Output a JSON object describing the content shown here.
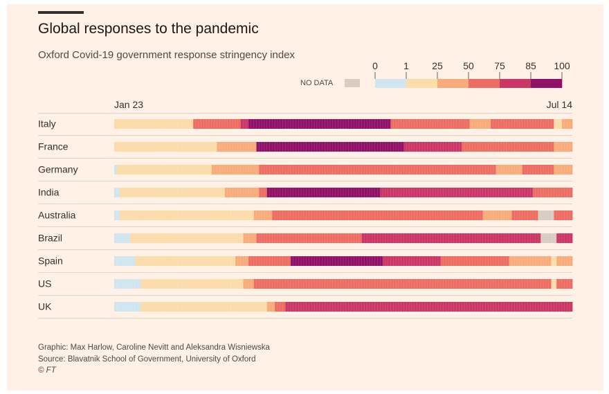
{
  "header": {
    "title": "Global responses to the pandemic",
    "subtitle": "Oxford Covid-19 government response stringency index"
  },
  "legend": {
    "no_data_label": "NO DATA",
    "no_data_color": "#d9ccc3",
    "ticks": [
      "0",
      "1",
      "25",
      "50",
      "75",
      "85",
      "100"
    ],
    "colors": [
      "#cfe6f0",
      "#fbdcaa",
      "#f8ac7b",
      "#ed6d63",
      "#cc3666",
      "#901167"
    ]
  },
  "footer": {
    "graphic": "Graphic: Max Harlow, Caroline Nevitt and Aleksandra Wisniewska",
    "source": "Source: Blavatnik School of Government, University of Oxford",
    "copyright": "© FT"
  },
  "chart_data": {
    "type": "heatmap",
    "title": "Global responses to the pandemic",
    "subtitle": "Oxford Covid-19 government response stringency index",
    "x_start_label": "Jan 23",
    "x_end_label": "Jul 14",
    "days": 174,
    "color_scale": {
      "breaks": [
        0,
        1,
        25,
        50,
        75,
        85,
        100
      ],
      "colors": [
        "#cfe6f0",
        "#fbdcaa",
        "#f8ac7b",
        "#ed6d63",
        "#cc3666",
        "#901167"
      ],
      "no_data_color": "#d9ccc3"
    },
    "series": [
      {
        "name": "Italy",
        "segments": [
          {
            "days": 30,
            "value": 20
          },
          {
            "days": 3,
            "value": 60
          },
          {
            "days": 15,
            "value": 72
          },
          {
            "days": 3,
            "value": 82
          },
          {
            "days": 54,
            "value": 93
          },
          {
            "days": 30,
            "value": 72
          },
          {
            "days": 8,
            "value": 40
          },
          {
            "days": 24,
            "value": 70
          },
          {
            "days": 3,
            "value": 20
          },
          {
            "days": 4,
            "value": 40
          }
        ]
      },
      {
        "name": "France",
        "segments": [
          {
            "days": 39,
            "value": 20
          },
          {
            "days": 15,
            "value": 45
          },
          {
            "days": 56,
            "value": 93
          },
          {
            "days": 22,
            "value": 82
          },
          {
            "days": 35,
            "value": 70
          },
          {
            "days": 7,
            "value": 40
          }
        ]
      },
      {
        "name": "Germany",
        "segments": [
          {
            "days": 1,
            "value": 0.5
          },
          {
            "days": 36,
            "value": 20
          },
          {
            "days": 18,
            "value": 45
          },
          {
            "days": 90,
            "value": 70
          },
          {
            "days": 10,
            "value": 40
          },
          {
            "days": 12,
            "value": 70
          },
          {
            "days": 7,
            "value": 45
          }
        ]
      },
      {
        "name": "India",
        "segments": [
          {
            "days": 2,
            "value": 0.5
          },
          {
            "days": 40,
            "value": 20
          },
          {
            "days": 13,
            "value": 45
          },
          {
            "days": 3,
            "value": 70
          },
          {
            "days": 43,
            "value": 93
          },
          {
            "days": 58,
            "value": 82
          },
          {
            "days": 15,
            "value": 70
          }
        ]
      },
      {
        "name": "Australia",
        "segments": [
          {
            "days": 2,
            "value": 0.5
          },
          {
            "days": 51,
            "value": 20
          },
          {
            "days": 7,
            "value": 45
          },
          {
            "days": 25,
            "value": 70
          },
          {
            "days": 55,
            "value": 72
          },
          {
            "days": 11,
            "value": 40
          },
          {
            "days": 10,
            "value": 70
          },
          {
            "days": 6,
            "value": -1
          },
          {
            "days": 7,
            "value": 70
          }
        ]
      },
      {
        "name": "Brazil",
        "segments": [
          {
            "days": 6,
            "value": 0.5
          },
          {
            "days": 43,
            "value": 20
          },
          {
            "days": 5,
            "value": 45
          },
          {
            "days": 40,
            "value": 70
          },
          {
            "days": 68,
            "value": 80
          },
          {
            "days": 6,
            "value": -1
          },
          {
            "days": 6,
            "value": 82
          }
        ]
      },
      {
        "name": "Spain",
        "segments": [
          {
            "days": 8,
            "value": 0.5
          },
          {
            "days": 38,
            "value": 20
          },
          {
            "days": 5,
            "value": 45
          },
          {
            "days": 16,
            "value": 72
          },
          {
            "days": 35,
            "value": 93
          },
          {
            "days": 22,
            "value": 82
          },
          {
            "days": 26,
            "value": 72
          },
          {
            "days": 16,
            "value": 40
          },
          {
            "days": 2,
            "value": 20
          },
          {
            "days": 6,
            "value": 40
          }
        ]
      },
      {
        "name": "US",
        "segments": [
          {
            "days": 10,
            "value": 0.5
          },
          {
            "days": 39,
            "value": 20
          },
          {
            "days": 4,
            "value": 45
          },
          {
            "days": 113,
            "value": 72
          },
          {
            "days": 2,
            "value": 20
          },
          {
            "days": 6,
            "value": 72
          }
        ]
      },
      {
        "name": "UK",
        "segments": [
          {
            "days": 10,
            "value": 0.5
          },
          {
            "days": 48,
            "value": 20
          },
          {
            "days": 3,
            "value": 45
          },
          {
            "days": 4,
            "value": 72
          },
          {
            "days": 48,
            "value": 80
          },
          {
            "days": 61,
            "value": 75
          }
        ]
      }
    ]
  }
}
